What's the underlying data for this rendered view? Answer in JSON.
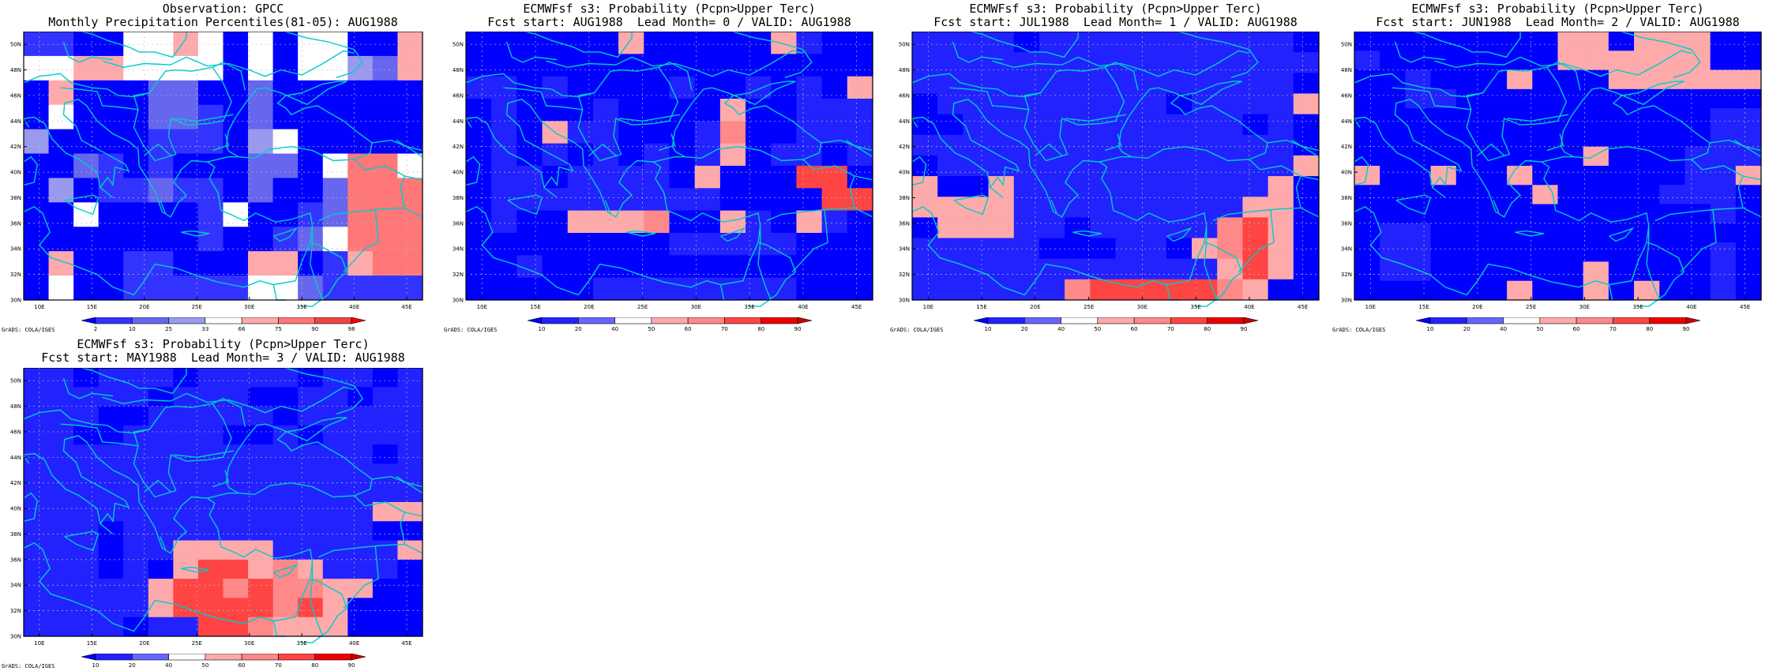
{
  "panels": [
    {
      "id": "obs",
      "title_line1": "Observation: GPCC",
      "title_line2": "Monthly Precipitation Percentiles(81-05): AUG1988",
      "credit": "GrADS: COLA/IGES",
      "colorbar": {
        "labels": [
          "2",
          "10",
          "25",
          "33",
          "66",
          "75",
          "90",
          "98"
        ],
        "colors": [
          "#0000ff",
          "#3333ff",
          "#6666ee",
          "#9999ee",
          "#ffffff",
          "#ffaaaa",
          "#ff7777",
          "#ee4444",
          "#ff0000"
        ]
      },
      "grid": [
        [
          1,
          1,
          0,
          0,
          4,
          4,
          5,
          4,
          0,
          4,
          0,
          4,
          4,
          0,
          0,
          5
        ],
        [
          4,
          4,
          5,
          5,
          4,
          4,
          4,
          4,
          0,
          4,
          0,
          4,
          4,
          3,
          2,
          5
        ],
        [
          0,
          5,
          0,
          0,
          0,
          2,
          2,
          0,
          0,
          2,
          0,
          0,
          0,
          0,
          0,
          0
        ],
        [
          0,
          4,
          0,
          0,
          0,
          2,
          2,
          1,
          0,
          2,
          0,
          0,
          0,
          0,
          0,
          0
        ],
        [
          3,
          0,
          0,
          0,
          0,
          1,
          1,
          1,
          0,
          3,
          4,
          0,
          0,
          0,
          0,
          0
        ],
        [
          0,
          0,
          2,
          1,
          0,
          1,
          0,
          0,
          0,
          2,
          2,
          0,
          4,
          6,
          6,
          4
        ],
        [
          0,
          3,
          0,
          1,
          1,
          2,
          1,
          1,
          0,
          2,
          0,
          0,
          2,
          6,
          6,
          6
        ],
        [
          0,
          0,
          4,
          0,
          0,
          0,
          0,
          1,
          4,
          0,
          0,
          1,
          2,
          6,
          6,
          6
        ],
        [
          0,
          0,
          0,
          0,
          0,
          0,
          0,
          1,
          0,
          0,
          1,
          2,
          4,
          6,
          6,
          6
        ],
        [
          0,
          5,
          0,
          0,
          1,
          1,
          0,
          0,
          0,
          5,
          5,
          0,
          1,
          5,
          6,
          6
        ],
        [
          0,
          4,
          0,
          0,
          1,
          1,
          1,
          1,
          1,
          4,
          4,
          2,
          1,
          1,
          1,
          1
        ]
      ]
    },
    {
      "id": "lead0",
      "title_line1": "ECMWFsf s3: Probability (Pcpn>Upper Terc)",
      "title_line2": "Fcst start: AUG1988  Lead Month= 0 / VALID: AUG1988",
      "credit": "GrADS: COLA/IGES",
      "colorbar": {
        "labels": [
          "10",
          "20",
          "40",
          "50",
          "60",
          "70",
          "80",
          "90"
        ],
        "colors": [
          "#0000ff",
          "#2222ff",
          "#6666ff",
          "#ffffff",
          "#ffaaaa",
          "#ff8888",
          "#ff4444",
          "#ee0000",
          "#cc0000"
        ]
      },
      "grid": [
        [
          0,
          0,
          0,
          0,
          0,
          0,
          4,
          0,
          0,
          0,
          0,
          0,
          4,
          1,
          0,
          0
        ],
        [
          0,
          0,
          0,
          0,
          0,
          0,
          0,
          0,
          0,
          0,
          0,
          0,
          0,
          0,
          0,
          0
        ],
        [
          1,
          1,
          0,
          1,
          0,
          0,
          0,
          0,
          1,
          0,
          0,
          1,
          0,
          1,
          0,
          4
        ],
        [
          0,
          1,
          0,
          0,
          0,
          1,
          0,
          0,
          0,
          0,
          4,
          0,
          0,
          1,
          1,
          1
        ],
        [
          0,
          1,
          0,
          4,
          1,
          1,
          0,
          0,
          0,
          1,
          5,
          0,
          0,
          1,
          1,
          1
        ],
        [
          0,
          1,
          0,
          1,
          0,
          1,
          0,
          1,
          0,
          1,
          4,
          0,
          1,
          1,
          0,
          1
        ],
        [
          0,
          1,
          1,
          0,
          1,
          1,
          1,
          1,
          0,
          4,
          0,
          0,
          0,
          6,
          6,
          0
        ],
        [
          0,
          1,
          1,
          1,
          1,
          1,
          1,
          1,
          1,
          1,
          0,
          0,
          0,
          0,
          6,
          6
        ],
        [
          0,
          1,
          0,
          0,
          4,
          4,
          4,
          5,
          0,
          0,
          4,
          1,
          0,
          4,
          1,
          0
        ],
        [
          0,
          0,
          0,
          0,
          0,
          0,
          0,
          0,
          1,
          1,
          1,
          1,
          1,
          0,
          0,
          0
        ],
        [
          0,
          0,
          1,
          0,
          0,
          0,
          0,
          0,
          0,
          0,
          0,
          0,
          0,
          0,
          0,
          0
        ],
        [
          0,
          0,
          0,
          0,
          0,
          1,
          1,
          1,
          1,
          1,
          1,
          1,
          1,
          0,
          0,
          0
        ]
      ]
    },
    {
      "id": "lead1",
      "title_line1": "ECMWFsf s3: Probability (Pcpn>Upper Terc)",
      "title_line2": "Fcst start: JUL1988  Lead Month= 1 / VALID: AUG1988",
      "credit": "GrADS: COLA/IGES",
      "colorbar": {
        "labels": [
          "10",
          "20",
          "40",
          "50",
          "60",
          "70",
          "80",
          "90"
        ],
        "colors": [
          "#0000ff",
          "#2222ff",
          "#6666ff",
          "#ffffff",
          "#ffaaaa",
          "#ff8888",
          "#ff4444",
          "#ee0000",
          "#cc0000"
        ]
      },
      "grid": [
        [
          1,
          1,
          1,
          1,
          0,
          1,
          1,
          1,
          1,
          1,
          1,
          1,
          1,
          1,
          1,
          0
        ],
        [
          1,
          1,
          1,
          1,
          1,
          1,
          1,
          1,
          1,
          1,
          1,
          1,
          1,
          1,
          1,
          1
        ],
        [
          1,
          1,
          1,
          1,
          1,
          1,
          1,
          1,
          1,
          1,
          1,
          1,
          1,
          1,
          1,
          0
        ],
        [
          0,
          1,
          1,
          1,
          1,
          1,
          1,
          1,
          1,
          1,
          0,
          1,
          1,
          1,
          1,
          4
        ],
        [
          0,
          0,
          1,
          1,
          1,
          1,
          1,
          1,
          1,
          1,
          1,
          1,
          1,
          0,
          1,
          0
        ],
        [
          1,
          1,
          1,
          1,
          1,
          1,
          1,
          1,
          1,
          1,
          1,
          1,
          1,
          1,
          1,
          0
        ],
        [
          0,
          1,
          1,
          1,
          1,
          1,
          1,
          1,
          1,
          1,
          1,
          1,
          1,
          1,
          1,
          4
        ],
        [
          4,
          0,
          0,
          4,
          1,
          1,
          1,
          1,
          1,
          1,
          1,
          1,
          1,
          1,
          4,
          0
        ],
        [
          4,
          4,
          4,
          4,
          1,
          1,
          1,
          1,
          1,
          1,
          1,
          1,
          1,
          4,
          4,
          0
        ],
        [
          0,
          4,
          4,
          4,
          1,
          1,
          0,
          1,
          1,
          1,
          1,
          1,
          5,
          6,
          4,
          0
        ],
        [
          1,
          1,
          1,
          1,
          1,
          0,
          0,
          0,
          1,
          1,
          0,
          4,
          5,
          6,
          4,
          0
        ],
        [
          1,
          1,
          1,
          1,
          1,
          1,
          1,
          1,
          1,
          1,
          1,
          1,
          4,
          6,
          4,
          0
        ],
        [
          1,
          1,
          1,
          1,
          1,
          1,
          5,
          6,
          6,
          6,
          6,
          6,
          5,
          4,
          0,
          0
        ]
      ]
    },
    {
      "id": "lead2",
      "title_line1": "ECMWFsf s3: Probability (Pcpn>Upper Terc)",
      "title_line2": "Fcst start: JUN1988  Lead Month= 2 / VALID: AUG1988",
      "credit": "GrADS: COLA/IGES",
      "colorbar": {
        "labels": [
          "10",
          "20",
          "40",
          "50",
          "60",
          "70",
          "80",
          "90"
        ],
        "colors": [
          "#0000ff",
          "#2222ff",
          "#6666ff",
          "#ffffff",
          "#ffaaaa",
          "#ff8888",
          "#ff4444",
          "#ee0000",
          "#cc0000"
        ]
      },
      "grid": [
        [
          0,
          0,
          0,
          0,
          0,
          0,
          0,
          0,
          4,
          4,
          0,
          4,
          4,
          4,
          0,
          0
        ],
        [
          1,
          0,
          0,
          0,
          0,
          0,
          0,
          0,
          4,
          4,
          4,
          4,
          4,
          4,
          0,
          0
        ],
        [
          0,
          0,
          1,
          0,
          0,
          0,
          4,
          0,
          0,
          0,
          4,
          4,
          4,
          4,
          4,
          4
        ],
        [
          0,
          0,
          1,
          1,
          0,
          0,
          0,
          0,
          0,
          0,
          0,
          0,
          0,
          0,
          0,
          0
        ],
        [
          0,
          0,
          0,
          0,
          0,
          0,
          0,
          0,
          0,
          0,
          0,
          0,
          0,
          0,
          1,
          1
        ],
        [
          0,
          0,
          0,
          0,
          0,
          0,
          0,
          0,
          0,
          0,
          0,
          0,
          0,
          0,
          1,
          1
        ],
        [
          0,
          0,
          0,
          0,
          0,
          0,
          0,
          0,
          0,
          4,
          0,
          0,
          0,
          1,
          1,
          1
        ],
        [
          4,
          0,
          0,
          4,
          0,
          0,
          4,
          0,
          0,
          0,
          0,
          0,
          0,
          1,
          1,
          4
        ],
        [
          0,
          0,
          0,
          0,
          0,
          0,
          0,
          4,
          0,
          0,
          0,
          0,
          1,
          1,
          1,
          0
        ],
        [
          0,
          0,
          0,
          0,
          0,
          0,
          0,
          0,
          0,
          0,
          0,
          0,
          0,
          0,
          1,
          0
        ],
        [
          0,
          1,
          1,
          0,
          0,
          0,
          0,
          0,
          0,
          0,
          0,
          0,
          0,
          0,
          0,
          0
        ],
        [
          0,
          1,
          1,
          0,
          0,
          0,
          0,
          0,
          0,
          0,
          0,
          0,
          0,
          0,
          1,
          0
        ],
        [
          0,
          1,
          1,
          0,
          0,
          0,
          0,
          0,
          0,
          4,
          0,
          0,
          0,
          0,
          1,
          0
        ],
        [
          0,
          0,
          0,
          0,
          0,
          0,
          4,
          0,
          0,
          4,
          0,
          4,
          0,
          0,
          1,
          0
        ]
      ]
    },
    {
      "id": "lead3",
      "title_line1": "ECMWFsf s3: Probability (Pcpn>Upper Terc)",
      "title_line2": "Fcst start: MAY1988  Lead Month= 3 / VALID: AUG1988",
      "credit": "GrADS: COLA/IGES",
      "colorbar": {
        "labels": [
          "10",
          "20",
          "40",
          "50",
          "60",
          "70",
          "80",
          "90"
        ],
        "colors": [
          "#0000ff",
          "#2222ff",
          "#6666ff",
          "#ffffff",
          "#ffaaaa",
          "#ff8888",
          "#ff4444",
          "#ee0000",
          "#cc0000"
        ]
      },
      "grid": [
        [
          1,
          1,
          0,
          1,
          1,
          1,
          0,
          1,
          1,
          1,
          1,
          0,
          1,
          1,
          0,
          1
        ],
        [
          1,
          1,
          1,
          1,
          1,
          0,
          1,
          1,
          1,
          0,
          0,
          1,
          1,
          0,
          1,
          1
        ],
        [
          1,
          1,
          1,
          0,
          0,
          1,
          1,
          1,
          1,
          1,
          0,
          1,
          1,
          1,
          1,
          1
        ],
        [
          1,
          1,
          0,
          0,
          1,
          1,
          1,
          1,
          0,
          0,
          1,
          0,
          1,
          1,
          1,
          1
        ],
        [
          1,
          1,
          1,
          1,
          1,
          1,
          1,
          1,
          1,
          1,
          1,
          1,
          1,
          1,
          0,
          1
        ],
        [
          1,
          1,
          1,
          1,
          1,
          1,
          1,
          1,
          1,
          1,
          1,
          1,
          1,
          1,
          1,
          1
        ],
        [
          1,
          1,
          1,
          1,
          1,
          1,
          1,
          1,
          1,
          1,
          1,
          1,
          1,
          1,
          1,
          1
        ],
        [
          1,
          1,
          1,
          1,
          1,
          1,
          1,
          1,
          1,
          1,
          1,
          1,
          1,
          1,
          4,
          4
        ],
        [
          1,
          1,
          1,
          0,
          1,
          1,
          1,
          1,
          1,
          1,
          1,
          1,
          1,
          1,
          0,
          0
        ],
        [
          1,
          1,
          1,
          0,
          1,
          1,
          4,
          4,
          4,
          4,
          1,
          1,
          1,
          1,
          1,
          4
        ],
        [
          1,
          1,
          1,
          0,
          1,
          0,
          4,
          6,
          6,
          4,
          5,
          4,
          1,
          1,
          1,
          0
        ],
        [
          1,
          1,
          1,
          1,
          1,
          4,
          6,
          6,
          5,
          6,
          5,
          5,
          4,
          4,
          0,
          0
        ],
        [
          1,
          1,
          1,
          1,
          1,
          4,
          6,
          6,
          6,
          6,
          5,
          6,
          4,
          0,
          0,
          0
        ],
        [
          1,
          1,
          1,
          1,
          0,
          1,
          1,
          6,
          6,
          5,
          4,
          4,
          4,
          0,
          0,
          0
        ]
      ]
    }
  ],
  "map": {
    "lat_labels": [
      "30N",
      "32N",
      "34N",
      "36N",
      "38N",
      "40N",
      "42N",
      "44N",
      "46N",
      "48N",
      "50N"
    ],
    "lon_labels": [
      "10E",
      "15E",
      "20E",
      "25E",
      "30E",
      "35E",
      "40E",
      "45E"
    ],
    "coast_color": "#00cccc",
    "grid_color": "#bbbbbb"
  }
}
